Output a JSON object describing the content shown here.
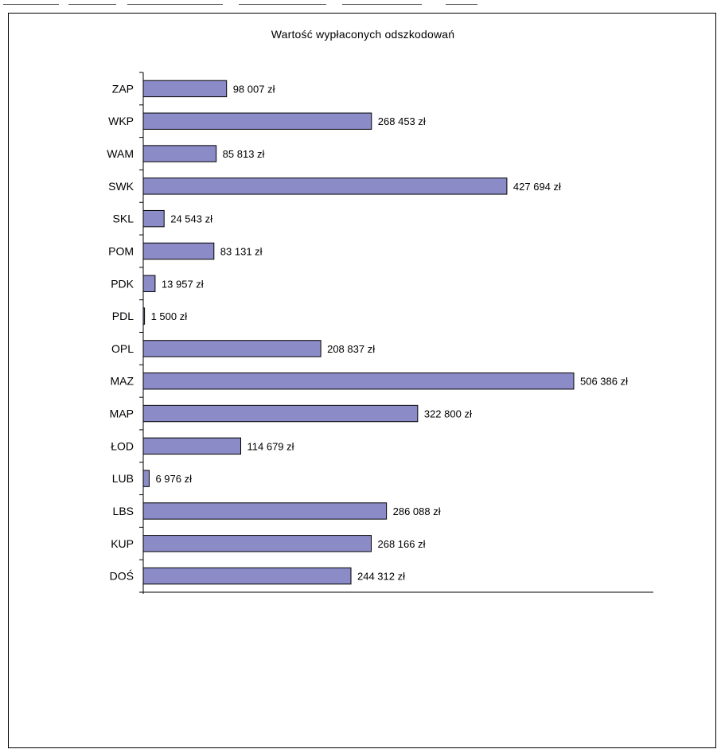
{
  "chart_data": {
    "type": "bar",
    "orientation": "horizontal",
    "title": "Wartość wypłaconych odszkodowań",
    "categories": [
      "ZAP",
      "WKP",
      "WAM",
      "SWK",
      "SKL",
      "POM",
      "PDK",
      "PDL",
      "OPL",
      "MAZ",
      "MAP",
      "ŁOD",
      "LUB",
      "LBS",
      "KUP",
      "DOŚ"
    ],
    "values": [
      98007,
      268453,
      85813,
      427694,
      24543,
      83131,
      13957,
      1500,
      208837,
      506386,
      322800,
      114679,
      6976,
      286088,
      268166,
      244312
    ],
    "data_labels": [
      "98 007 zł",
      "268 453 zł",
      "85 813 zł",
      "427 694 zł",
      "24 543 zł",
      "83 131 zł",
      "13 957 zł",
      "1 500 zł",
      "208 837 zł",
      "506 386 zł",
      "322 800 zł",
      "114 679 zł",
      "6 976 zł",
      "286 088 zł",
      "268 166 zł",
      "244 312 zł"
    ],
    "xlim": [
      0,
      600000
    ],
    "grid": false,
    "legend": "none",
    "bar_color": "#8b8bc8",
    "bar_edge_color": "#000000"
  }
}
